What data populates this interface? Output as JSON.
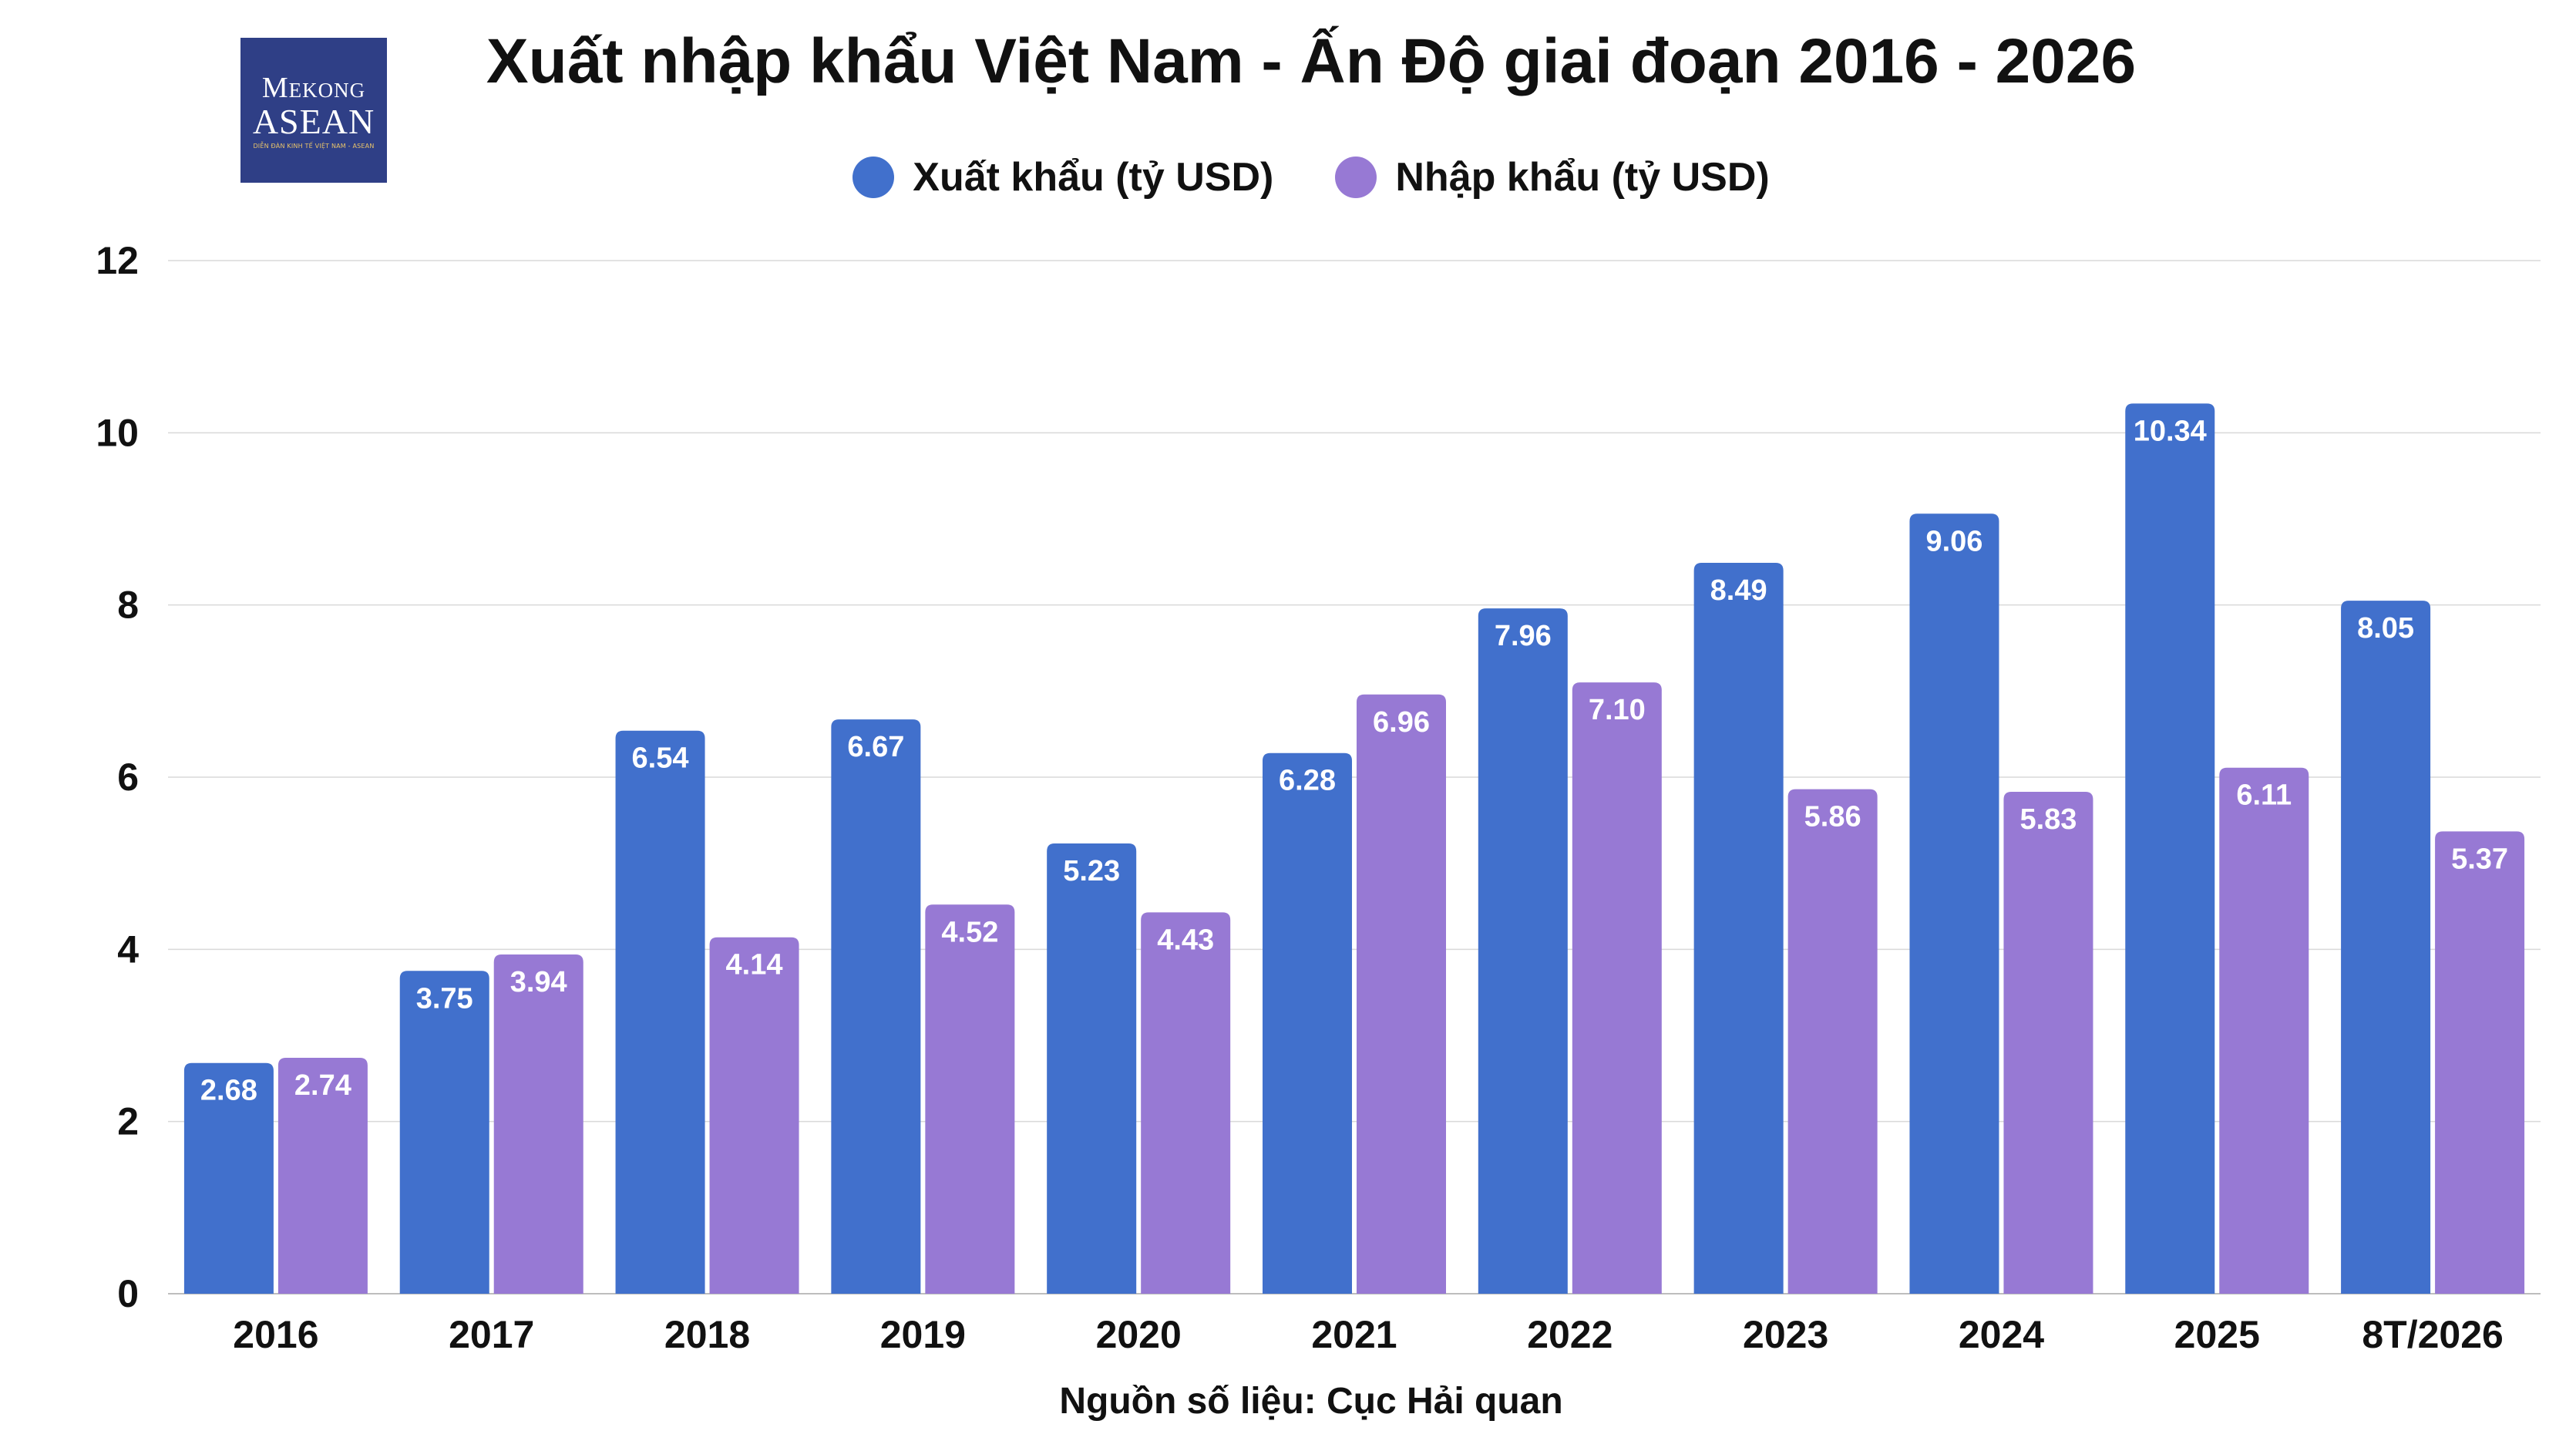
{
  "logo": {
    "line1": "Mekong",
    "line2": "ASEAN",
    "line3": "DIỄN ĐÀN KINH TẾ VIỆT NAM - ASEAN"
  },
  "colors": {
    "export": "#4170cc",
    "import": "#9779d4",
    "logo_bg": "#2f3f86",
    "grid": "#d9d9d9"
  },
  "chart_data": {
    "type": "bar",
    "title": "Xuất nhập khẩu Việt Nam - Ấn Độ giai đoạn 2016 - 2026",
    "xlabel": "",
    "ylabel": "",
    "ylim": [
      0,
      12
    ],
    "yticks": [
      0,
      2,
      4,
      6,
      8,
      10,
      12
    ],
    "grid": true,
    "legend_position": "top-center",
    "categories": [
      "2016",
      "2017",
      "2018",
      "2019",
      "2020",
      "2021",
      "2022",
      "2023",
      "2024",
      "2025",
      "8T/2026"
    ],
    "series": [
      {
        "name": "Xuất khẩu (tỷ USD)",
        "values": [
          2.68,
          3.75,
          6.54,
          6.67,
          5.23,
          6.28,
          7.96,
          8.49,
          9.06,
          10.34,
          8.05
        ],
        "labels": [
          "2.68",
          "3.75",
          "6.54",
          "6.67",
          "5.23",
          "6.28",
          "7.96",
          "8.49",
          "9.06",
          "10.34",
          "8.05"
        ]
      },
      {
        "name": "Nhập khẩu (tỷ USD)",
        "values": [
          2.74,
          3.94,
          4.14,
          4.52,
          4.43,
          6.96,
          7.1,
          5.86,
          5.83,
          6.11,
          5.37
        ],
        "labels": [
          "2.74",
          "3.94",
          "4.14",
          "4.52",
          "4.43",
          "6.96",
          "7.10",
          "5.86",
          "5.83",
          "6.11",
          "5.37"
        ]
      }
    ],
    "source": "Nguồn số liệu: Cục Hải quan"
  }
}
